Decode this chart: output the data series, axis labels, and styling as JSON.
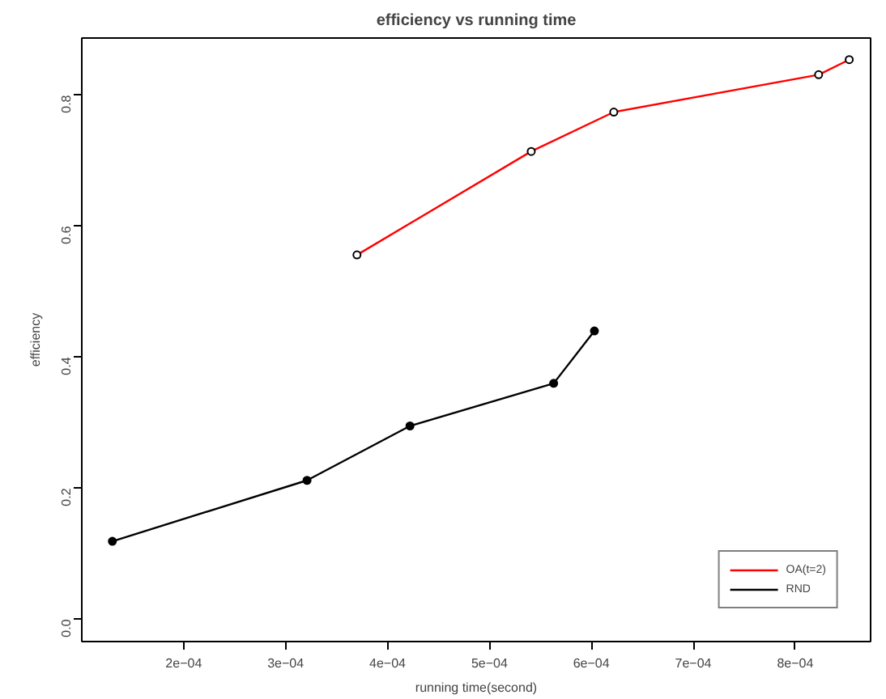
{
  "chart_data": {
    "type": "line",
    "title": "efficiency vs running time",
    "xlabel": "running time(second)",
    "ylabel": "efficiency",
    "series": [
      {
        "name": "OA(t=2)",
        "color": "#ff0000",
        "x": [
          0.00037,
          0.000541,
          0.000622,
          0.000823,
          0.000853
        ],
        "values": [
          0.556,
          0.714,
          0.774,
          0.831,
          0.854
        ]
      },
      {
        "name": "RND",
        "color": "#000000",
        "x": [
          0.00013,
          0.000321,
          0.000422,
          0.000563,
          0.000603
        ],
        "values": [
          0.119,
          0.212,
          0.295,
          0.36,
          0.44
        ]
      }
    ],
    "xlim": [
      0.0001,
      0.000874
    ],
    "ylim": [
      -0.034,
      0.887
    ],
    "xticks": [
      {
        "value": 0.0002,
        "label": "2e−04"
      },
      {
        "value": 0.0003,
        "label": "3e−04"
      },
      {
        "value": 0.0004,
        "label": "4e−04"
      },
      {
        "value": 0.0005,
        "label": "5e−04"
      },
      {
        "value": 0.0006,
        "label": "6e−04"
      },
      {
        "value": 0.0007,
        "label": "7e−04"
      },
      {
        "value": 0.0008,
        "label": "8e−04"
      }
    ],
    "yticks": [
      {
        "value": 0,
        "label": "0.0"
      },
      0.2,
      0.4,
      0.6,
      0.8
    ],
    "legend": "bottom right",
    "marker": "circle",
    "grid": false
  }
}
